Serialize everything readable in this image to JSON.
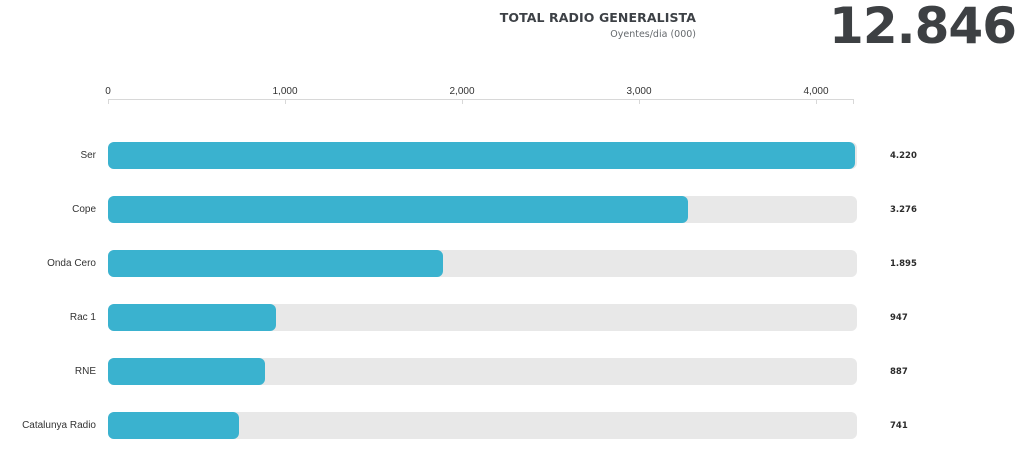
{
  "header": {
    "title": "TOTAL RADIO GENERALISTA",
    "subtitle": "Oyentes/dia (000)",
    "total": "12.846"
  },
  "axis": {
    "ticks": [
      {
        "label": "0",
        "value": 0
      },
      {
        "label": "1,000",
        "value": 1000
      },
      {
        "label": "2,000",
        "value": 2000
      },
      {
        "label": "3,000",
        "value": 3000
      },
      {
        "label": "4,000",
        "value": 4000
      }
    ]
  },
  "colors": {
    "bar": "#3ab2cf",
    "track": "#e8e8e8",
    "text": "#3d4146"
  },
  "rows": [
    {
      "label": "Ser",
      "value": 4220,
      "display": "4.220"
    },
    {
      "label": "Cope",
      "value": 3276,
      "display": "3.276"
    },
    {
      "label": "Onda Cero",
      "value": 1895,
      "display": "1.895"
    },
    {
      "label": "Rac 1",
      "value": 947,
      "display": "947"
    },
    {
      "label": "RNE",
      "value": 887,
      "display": "887"
    },
    {
      "label": "Catalunya Radio",
      "value": 741,
      "display": "741"
    }
  ],
  "chart_data": {
    "type": "bar",
    "orientation": "horizontal",
    "title": "TOTAL RADIO GENERALISTA",
    "subtitle": "Oyentes/dia (000)",
    "total": 12846,
    "categories": [
      "Ser",
      "Cope",
      "Onda Cero",
      "Rac 1",
      "RNE",
      "Catalunya Radio"
    ],
    "values": [
      4220,
      3276,
      1895,
      947,
      887,
      741
    ],
    "xlabel": "",
    "ylabel": "",
    "xlim": [
      0,
      4230
    ],
    "xticks": [
      0,
      1000,
      2000,
      3000,
      4000
    ],
    "grid": false,
    "legend": "none"
  }
}
